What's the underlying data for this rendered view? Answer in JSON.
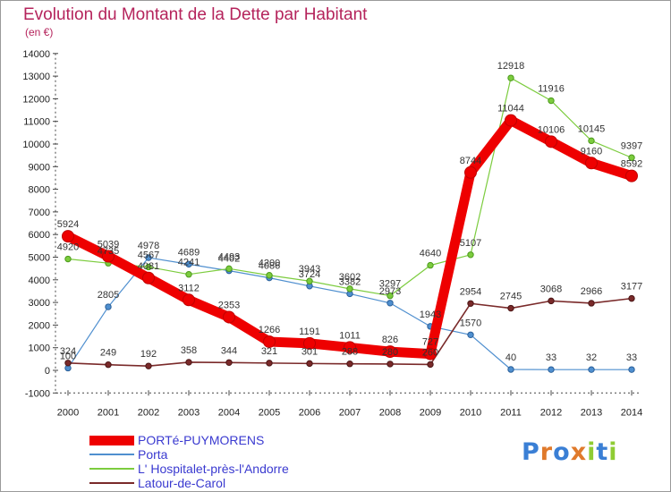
{
  "title": "Evolution du Montant de la Dette par Habitant",
  "unit": "(en €)",
  "logo": [
    "P",
    "r",
    "o",
    "x",
    "i",
    "t",
    "i"
  ],
  "chart_data": {
    "type": "line",
    "title": "Evolution du Montant de la Dette par Habitant",
    "ylabel": "(en €)",
    "x": [
      "2000",
      "2001",
      "2002",
      "2003",
      "2004",
      "2005",
      "2006",
      "2007",
      "2008",
      "2009",
      "2010",
      "2011",
      "2012",
      "2013",
      "2014"
    ],
    "ylim": [
      -1000,
      14000
    ],
    "yticks": [
      "-1000",
      "0",
      "1000",
      "2000",
      "3000",
      "4000",
      "5000",
      "6000",
      "7000",
      "8000",
      "9000",
      "10000",
      "11000",
      "12000",
      "13000",
      "14000"
    ],
    "grid": false,
    "legend_position": "bottom-left",
    "series": [
      {
        "name": "PORTé-PUYMORENS",
        "color": "#ee0000",
        "values": [
          5924,
          5039,
          4081,
          3112,
          2353,
          1266,
          1191,
          1011,
          826,
          727,
          8744,
          11044,
          10106,
          9160,
          8592
        ],
        "labels": [
          "5924",
          "5039",
          "4081",
          "3112",
          "2353",
          "1266",
          "1191",
          "1011",
          "826",
          "727",
          "8744",
          "11044",
          "10106",
          "9160",
          "8592"
        ]
      },
      {
        "name": "Porta",
        "color": "#4f8fcf",
        "values": [
          100,
          2805,
          4978,
          4689,
          4402,
          4086,
          3724,
          3382,
          2973,
          1943,
          1570,
          40,
          33,
          32,
          33
        ],
        "labels": [
          "100",
          "2805",
          "4978",
          "4689",
          "4402",
          "4086",
          "3724",
          "3382",
          "2973",
          "1943",
          "1570",
          "40",
          "33",
          "32",
          "33"
        ]
      },
      {
        "name": "L' Hospitalet-près-l'Andorre",
        "color": "#7ccc3e",
        "values": [
          4920,
          4735,
          4567,
          4241,
          4493,
          4200,
          3943,
          3602,
          3297,
          4640,
          5107,
          12918,
          11916,
          10145,
          9397
        ],
        "labels": [
          "4920",
          "4735",
          "4567",
          "4241",
          "4493",
          "4200",
          "3943",
          "3602",
          "3297",
          "4640",
          "5107",
          "12918",
          "11916",
          "10145",
          "9397"
        ]
      },
      {
        "name": "Latour-de-Carol",
        "color": "#7a2a2a",
        "values": [
          324,
          249,
          192,
          358,
          344,
          321,
          301,
          288,
          280,
          260,
          2954,
          2745,
          3068,
          2966,
          3177
        ],
        "labels": [
          "324",
          "249",
          "192",
          "358",
          "344",
          "321",
          "301",
          "288",
          "280",
          "260",
          "2954",
          "2745",
          "3068",
          "2966",
          "3177"
        ]
      }
    ]
  }
}
